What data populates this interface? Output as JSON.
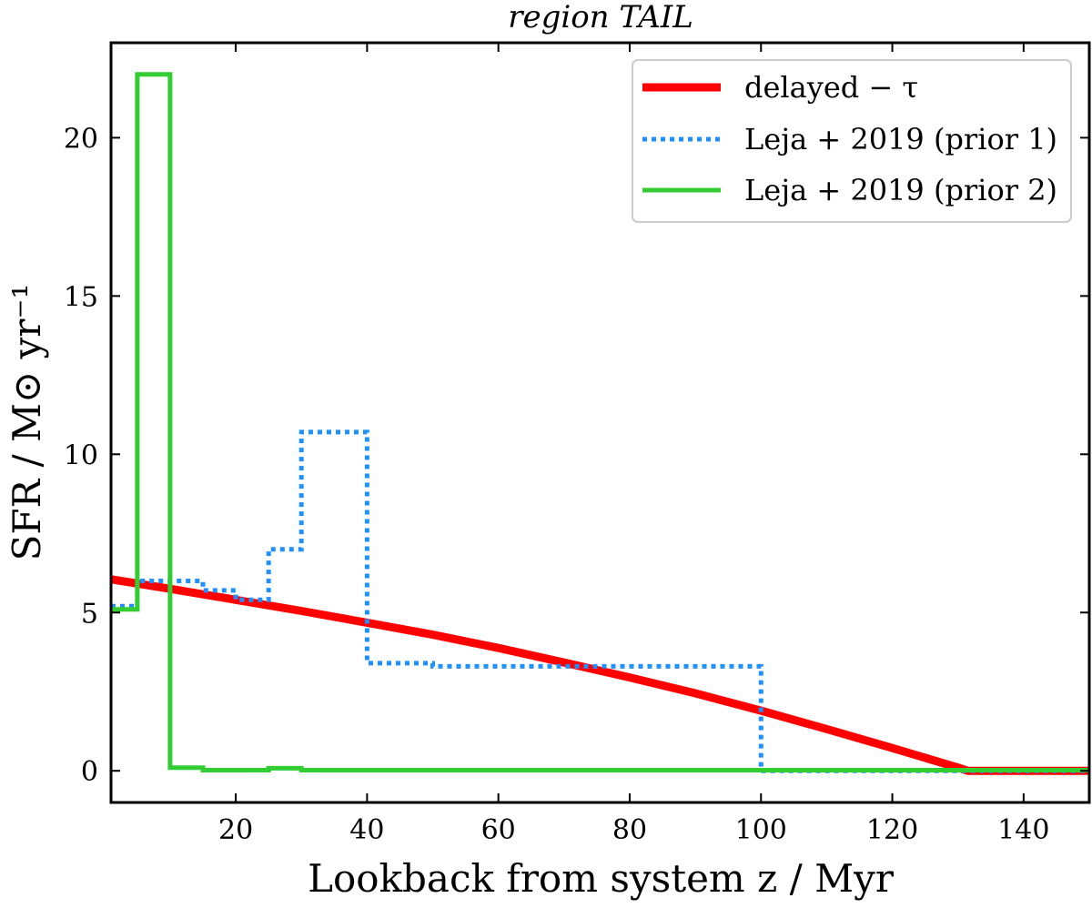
{
  "chart_data": {
    "type": "line",
    "title": "region TAIL",
    "xlabel": "Lookback from system z / Myr",
    "ylabel": "SFR / M⊙ yr⁻¹",
    "xlim": [
      1,
      150
    ],
    "ylim": [
      -1,
      23
    ],
    "xticks": [
      20,
      40,
      60,
      80,
      100,
      120,
      140
    ],
    "xtick_labels": [
      "20",
      "40",
      "60",
      "80",
      "100",
      "120",
      "140"
    ],
    "yticks": [
      0,
      5,
      10,
      15,
      20
    ],
    "ytick_labels": [
      "0",
      "5",
      "10",
      "15",
      "20"
    ],
    "grid": false,
    "legend_position": "top-right",
    "series": [
      {
        "name": "delayed − τ",
        "color": "#ff0000",
        "style": "solid-thick",
        "x": [
          1,
          10,
          20,
          30,
          40,
          50,
          60,
          70,
          80,
          90,
          100,
          110,
          120,
          130,
          131.5,
          150
        ],
        "y": [
          6.05,
          5.75,
          5.4,
          5.05,
          4.68,
          4.3,
          3.88,
          3.42,
          2.95,
          2.45,
          1.9,
          1.32,
          0.72,
          0.1,
          0,
          0
        ]
      },
      {
        "name": "Leja + 2019 (prior 1)",
        "color": "#1e90ff",
        "style": "dotted",
        "x": [
          1,
          5,
          5,
          15,
          15,
          20,
          20,
          25,
          25,
          30,
          30,
          40,
          40,
          50,
          50,
          100,
          100,
          150
        ],
        "y": [
          5.2,
          5.2,
          6.0,
          6.0,
          5.7,
          5.7,
          5.4,
          5.4,
          7.0,
          7.0,
          10.7,
          10.7,
          3.4,
          3.4,
          3.3,
          3.3,
          0,
          0
        ]
      },
      {
        "name": "Leja + 2019 (prior 2)",
        "color": "#32cd32",
        "style": "solid",
        "x": [
          1,
          5,
          5,
          10,
          10,
          15,
          15,
          25,
          25,
          30,
          30,
          150
        ],
        "y": [
          5.1,
          5.1,
          22.0,
          22.0,
          0.1,
          0.1,
          0.02,
          0.02,
          0.08,
          0.08,
          0.02,
          0.02
        ]
      }
    ]
  }
}
